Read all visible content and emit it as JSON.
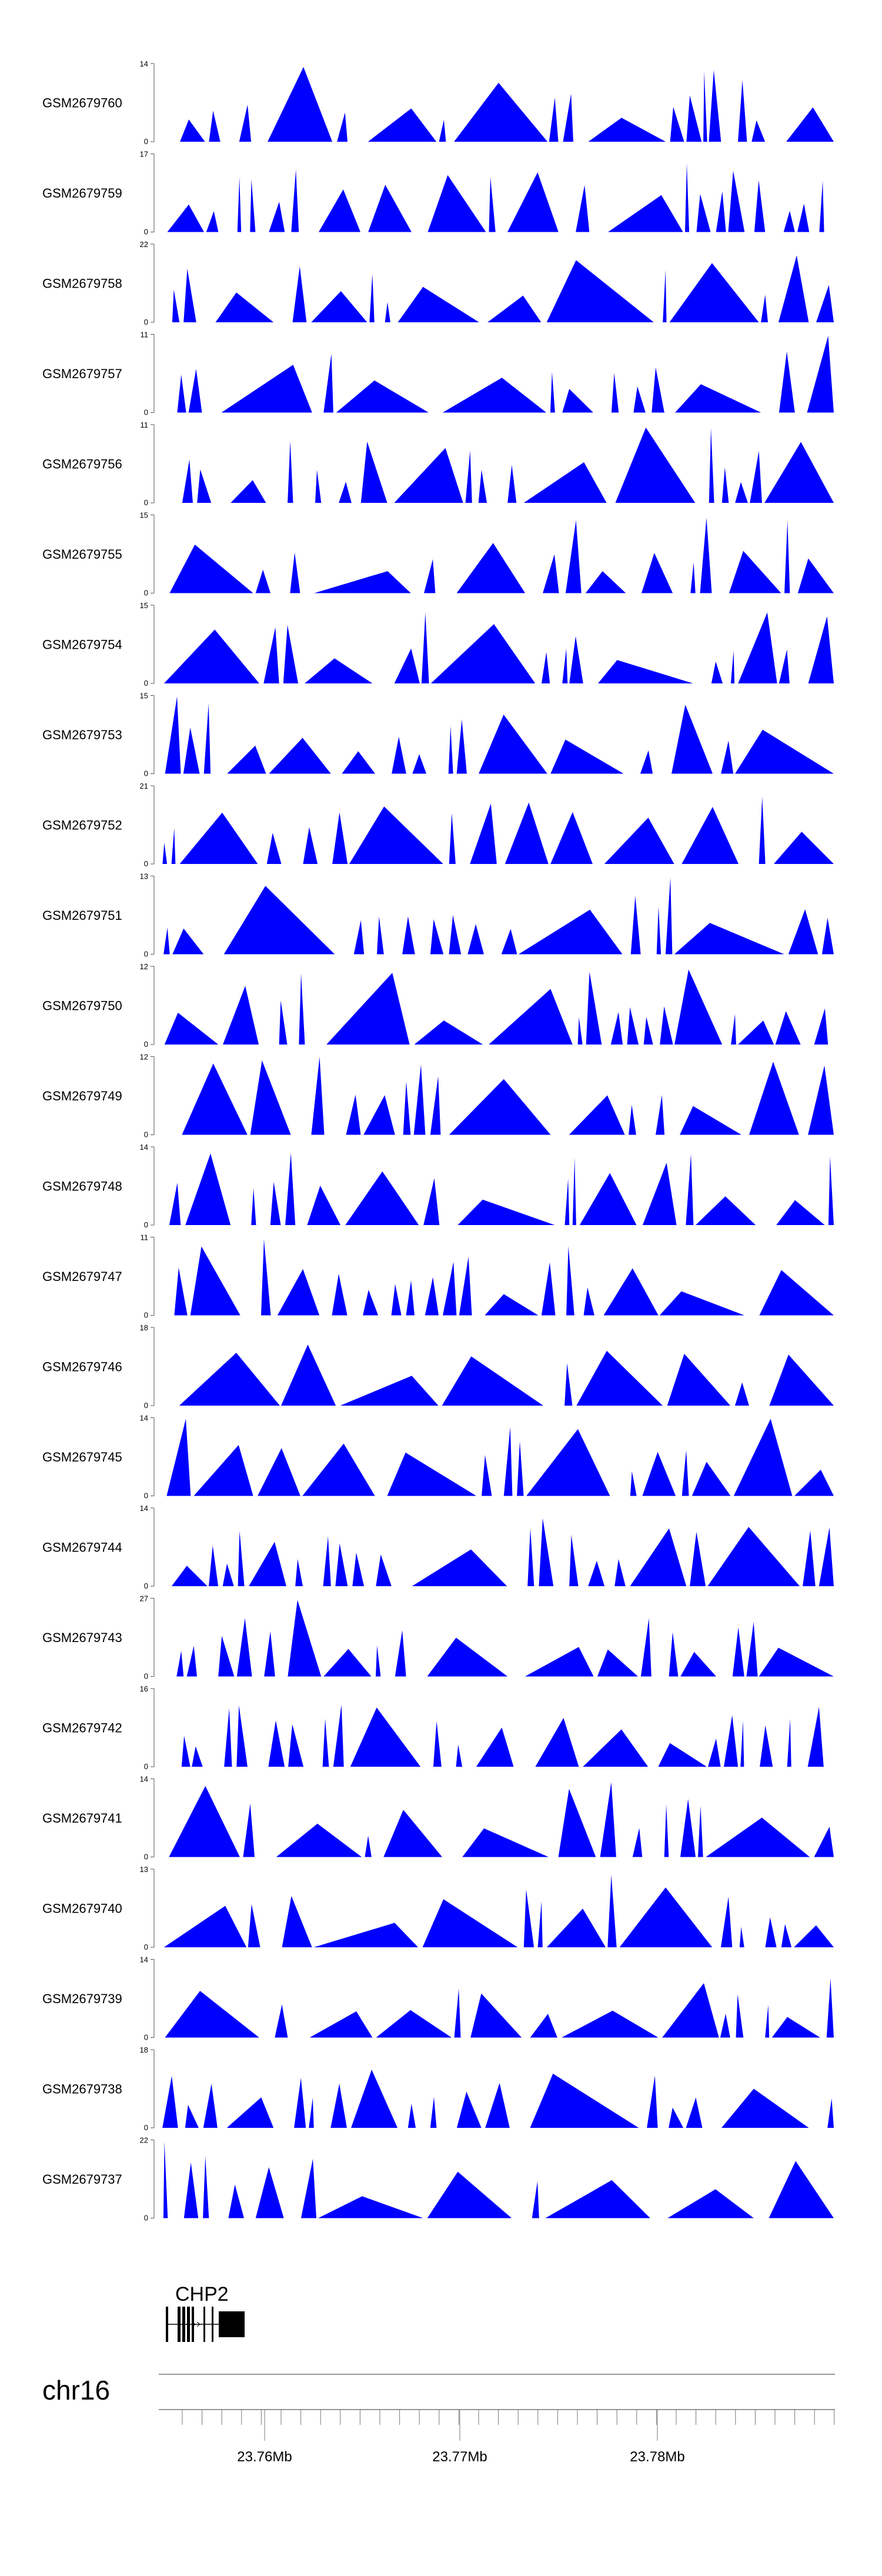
{
  "chart_data": {
    "type": "area",
    "chromosome": "chr16",
    "gene": {
      "name": "CHP2"
    },
    "axis": {
      "ticks": [
        "23.76Mb",
        "23.77Mb",
        "23.78Mb"
      ]
    },
    "series_color": "#0000ff",
    "tracks": [
      {
        "name": "GSM2679760",
        "ymax": "14",
        "ymin": "0"
      },
      {
        "name": "GSM2679759",
        "ymax": "17",
        "ymin": "0"
      },
      {
        "name": "GSM2679758",
        "ymax": "22",
        "ymin": "0"
      },
      {
        "name": "GSM2679757",
        "ymax": "11",
        "ymin": "0"
      },
      {
        "name": "GSM2679756",
        "ymax": "11",
        "ymin": "0"
      },
      {
        "name": "GSM2679755",
        "ymax": "15",
        "ymin": "0"
      },
      {
        "name": "GSM2679754",
        "ymax": "15",
        "ymin": "0"
      },
      {
        "name": "GSM2679753",
        "ymax": "15",
        "ymin": "0"
      },
      {
        "name": "GSM2679752",
        "ymax": "21",
        "ymin": "0"
      },
      {
        "name": "GSM2679751",
        "ymax": "13",
        "ymin": "0"
      },
      {
        "name": "GSM2679750",
        "ymax": "12",
        "ymin": "0"
      },
      {
        "name": "GSM2679749",
        "ymax": "12",
        "ymin": "0"
      },
      {
        "name": "GSM2679748",
        "ymax": "14",
        "ymin": "0"
      },
      {
        "name": "GSM2679747",
        "ymax": "11",
        "ymin": "0"
      },
      {
        "name": "GSM2679746",
        "ymax": "18",
        "ymin": "0"
      },
      {
        "name": "GSM2679745",
        "ymax": "14",
        "ymin": "0"
      },
      {
        "name": "GSM2679744",
        "ymax": "14",
        "ymin": "0"
      },
      {
        "name": "GSM2679743",
        "ymax": "27",
        "ymin": "0"
      },
      {
        "name": "GSM2679742",
        "ymax": "16",
        "ymin": "0"
      },
      {
        "name": "GSM2679741",
        "ymax": "14",
        "ymin": "0"
      },
      {
        "name": "GSM2679740",
        "ymax": "13",
        "ymin": "0"
      },
      {
        "name": "GSM2679739",
        "ymax": "14",
        "ymin": "0"
      },
      {
        "name": "GSM2679738",
        "ymax": "18",
        "ymin": "0"
      },
      {
        "name": "GSM2679737",
        "ymax": "22",
        "ymin": "0"
      }
    ]
  }
}
